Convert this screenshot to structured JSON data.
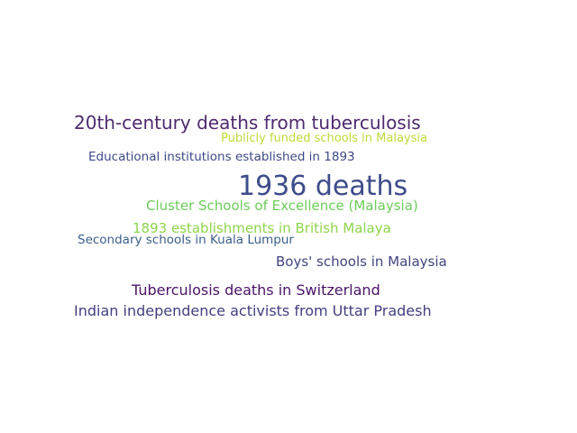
{
  "words": [
    {
      "text": "20th-century deaths from tuberculosis",
      "color": "#4d2a6e"
    },
    {
      "text": "Publicly funded schools in Malaysia",
      "color": "#bedb3a"
    },
    {
      "text": "Educational institutions established in 1893",
      "color": "#3d4a85"
    },
    {
      "text": "1936 deaths",
      "color": "#3e4c8a"
    },
    {
      "text": "Cluster Schools of Excellence (Malaysia)",
      "color": "#6ccd5a"
    },
    {
      "text": "1893 establishments in British Malaya",
      "color": "#8fd44a"
    },
    {
      "text": "Secondary schools in Kuala Lumpur",
      "color": "#3b5f8a"
    },
    {
      "text": "Boys' schools in Malaysia",
      "color": "#41457e"
    },
    {
      "text": "Tuberculosis deaths in Switzerland",
      "color": "#4a1466"
    },
    {
      "text": "Indian independence activists from Uttar Pradesh",
      "color": "#433f80"
    }
  ]
}
